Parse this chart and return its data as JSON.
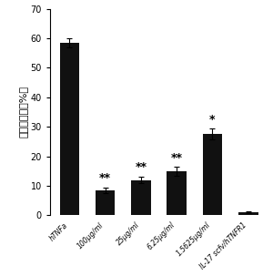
{
  "categories": [
    "hTNFa",
    "100μg/ml",
    "25μg/ml",
    "6.25μg/ml",
    "1.5625μg/ml",
    "IL-17 scfv/hTNFR1"
  ],
  "values": [
    58.5,
    8.5,
    12.0,
    15.0,
    27.5,
    1.0
  ],
  "errors": [
    1.5,
    1.0,
    1.2,
    1.5,
    1.8,
    0.3
  ],
  "bar_color": "#111111",
  "ylabel": "细胞死亡率（%）",
  "ylim": [
    0,
    70
  ],
  "yticks": [
    0,
    10,
    20,
    30,
    40,
    50,
    60,
    70
  ],
  "significance": [
    "",
    "**",
    "**",
    "**",
    "*",
    ""
  ],
  "sig_fontsize": 9,
  "bar_width": 0.55,
  "ylabel_fontsize": 8,
  "tick_fontsize": 7,
  "xtick_fontsize": 5.5,
  "background_color": "#ffffff"
}
